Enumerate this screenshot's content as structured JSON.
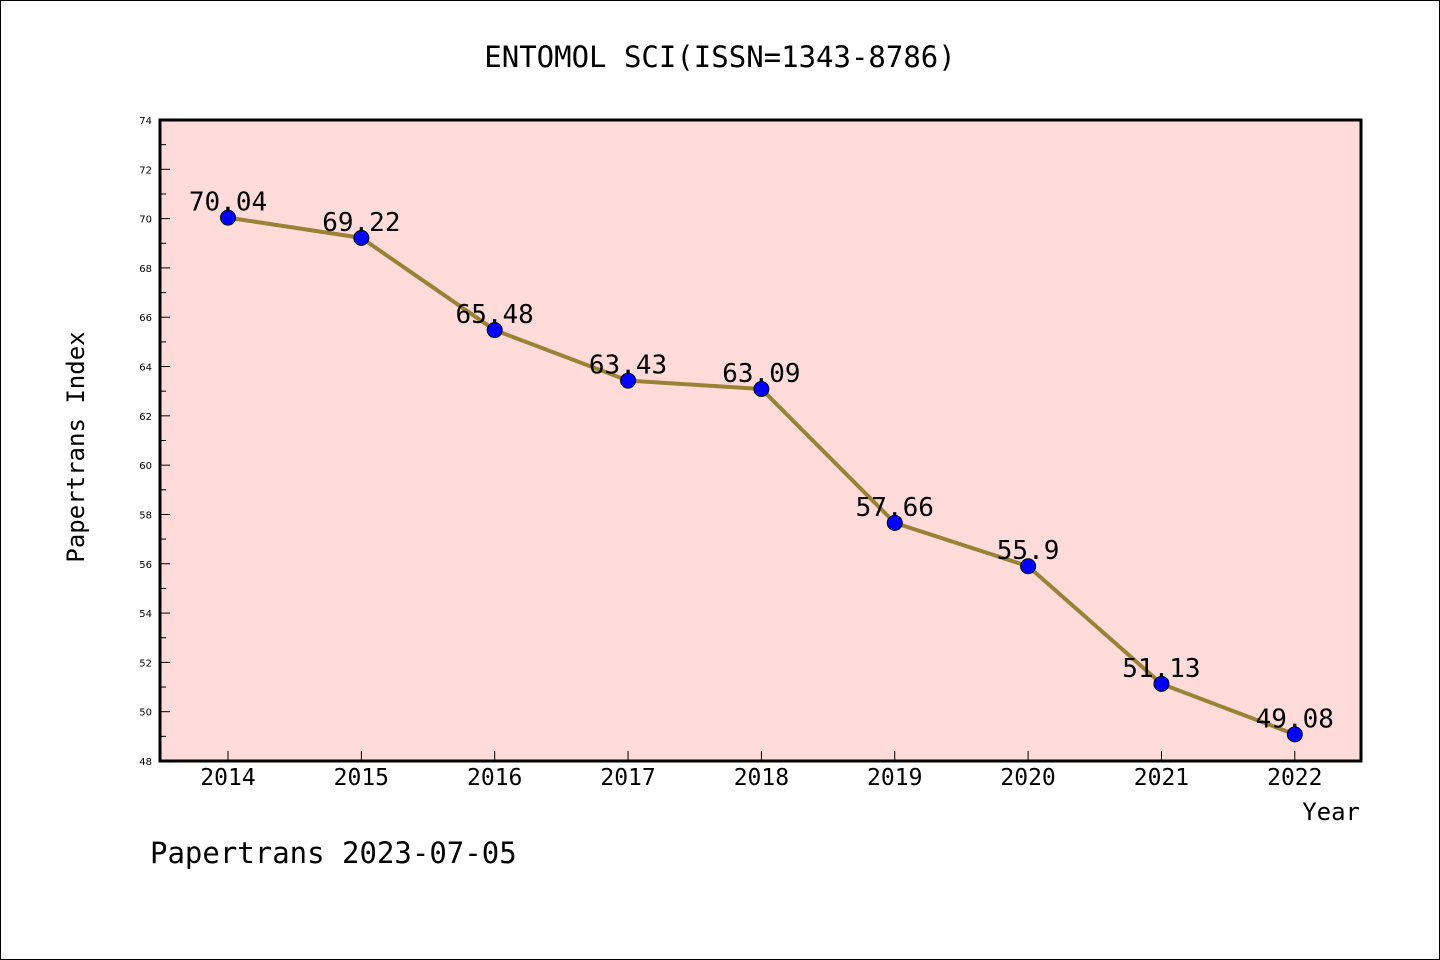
{
  "chart_data": {
    "type": "line",
    "title": "ENTOMOL SCI(ISSN=1343-8786)",
    "xlabel": "Year",
    "ylabel": "Papertrans Index",
    "categories": [
      "2014",
      "2015",
      "2016",
      "2017",
      "2018",
      "2019",
      "2020",
      "2021",
      "2022"
    ],
    "values": [
      70.04,
      69.22,
      65.48,
      63.43,
      63.09,
      57.66,
      55.9,
      51.13,
      49.08
    ],
    "data_labels": [
      "70.04",
      "69.22",
      "65.48",
      "63.43",
      "63.09",
      "57.66",
      "55.9",
      "51.13",
      "49.08"
    ],
    "ylim": [
      48,
      74
    ],
    "yticks": [
      "48",
      "50",
      "52",
      "54",
      "56",
      "58",
      "60",
      "62",
      "64",
      "66",
      "68",
      "70",
      "72",
      "74"
    ],
    "grid": false,
    "legend": "none",
    "colors": {
      "plot_background": "#ffdcd9",
      "line": "#9b8136",
      "marker": "#0000ff"
    }
  },
  "footer": "Papertrans 2023-07-05"
}
